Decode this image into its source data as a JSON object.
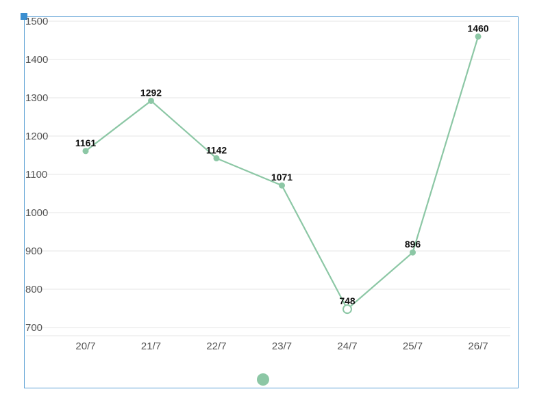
{
  "chart_data": {
    "type": "line",
    "title": "",
    "xlabel": "",
    "ylabel": "",
    "categories": [
      "20/7",
      "21/7",
      "22/7",
      "23/7",
      "24/7",
      "25/7",
      "26/7"
    ],
    "series": [
      {
        "values": [
          1161,
          1292,
          1142,
          1071,
          748,
          896,
          1460
        ]
      }
    ],
    "ylim": [
      700,
      1500
    ],
    "yticks": [
      700,
      800,
      900,
      1000,
      1100,
      1200,
      1300,
      1400,
      1500
    ],
    "grid": true,
    "highlighted_category": "24/7",
    "colors": {
      "series": "#8cc7a5",
      "frame": "#5a9fd4"
    }
  }
}
